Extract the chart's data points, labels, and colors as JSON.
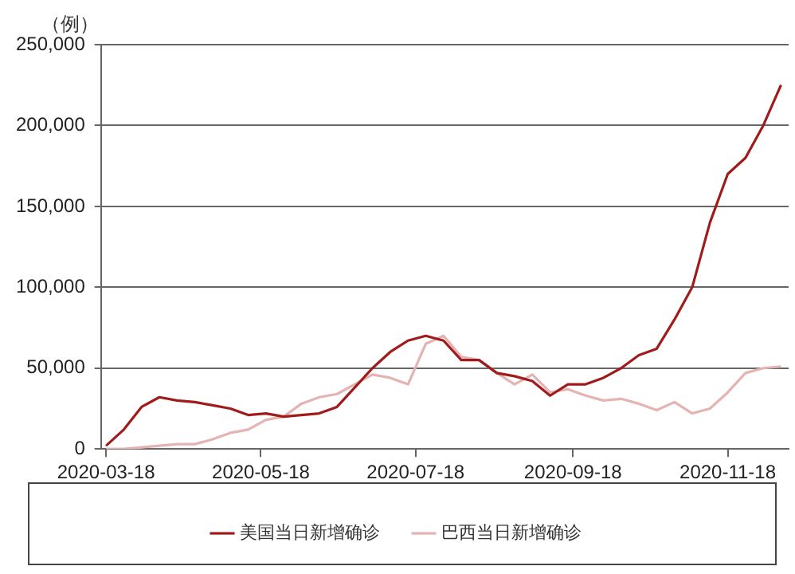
{
  "chart_data": {
    "type": "line",
    "ylabel": "（例）",
    "x": [
      "2020-03-18",
      "2020-03-25",
      "2020-04-01",
      "2020-04-08",
      "2020-04-15",
      "2020-04-22",
      "2020-04-29",
      "2020-05-06",
      "2020-05-13",
      "2020-05-20",
      "2020-05-27",
      "2020-06-03",
      "2020-06-10",
      "2020-06-17",
      "2020-06-24",
      "2020-07-01",
      "2020-07-08",
      "2020-07-15",
      "2020-07-22",
      "2020-07-29",
      "2020-08-05",
      "2020-08-12",
      "2020-08-19",
      "2020-08-26",
      "2020-09-02",
      "2020-09-09",
      "2020-09-16",
      "2020-09-23",
      "2020-09-30",
      "2020-10-07",
      "2020-10-14",
      "2020-10-21",
      "2020-10-28",
      "2020-11-04",
      "2020-11-11",
      "2020-11-18",
      "2020-11-25",
      "2020-12-02",
      "2020-12-09"
    ],
    "series": [
      {
        "name": "美国当日新增确诊",
        "color": "#a01c1c",
        "values": [
          2000,
          12000,
          26000,
          32000,
          30000,
          29000,
          27000,
          25000,
          21000,
          22000,
          20000,
          21000,
          22000,
          26000,
          38000,
          50000,
          60000,
          67000,
          70000,
          67000,
          55000,
          55000,
          47000,
          45000,
          42000,
          33000,
          40000,
          40000,
          44000,
          50000,
          58000,
          62000,
          80000,
          100000,
          140000,
          170000,
          180000,
          200000,
          225000
        ]
      },
      {
        "name": "巴西当日新增确诊",
        "color": "#e6b3b3",
        "values": [
          0,
          0,
          1000,
          2000,
          3000,
          3000,
          6000,
          10000,
          12000,
          18000,
          20000,
          28000,
          32000,
          34000,
          40000,
          46000,
          44000,
          40000,
          65000,
          70000,
          57000,
          55000,
          47000,
          40000,
          46000,
          35000,
          37000,
          33000,
          30000,
          31000,
          28000,
          24000,
          29000,
          22000,
          25000,
          35000,
          47000,
          50000,
          51000
        ]
      }
    ],
    "xlim": [
      "2020-03-16",
      "2020-12-12"
    ],
    "xticks": [
      "2020-03-18",
      "2020-05-18",
      "2020-07-18",
      "2020-09-18",
      "2020-11-18"
    ],
    "ylim": [
      0,
      250000
    ],
    "yticks": [
      {
        "value": 0,
        "label": "0"
      },
      {
        "value": 50000,
        "label": "50,000"
      },
      {
        "value": 100000,
        "label": "100,000"
      },
      {
        "value": 150000,
        "label": "150,000"
      },
      {
        "value": 200000,
        "label": "200,000"
      },
      {
        "value": 250000,
        "label": "250,000"
      }
    ],
    "grid": "y",
    "legend": "bottom",
    "marker": "none",
    "line_style": "solid"
  }
}
